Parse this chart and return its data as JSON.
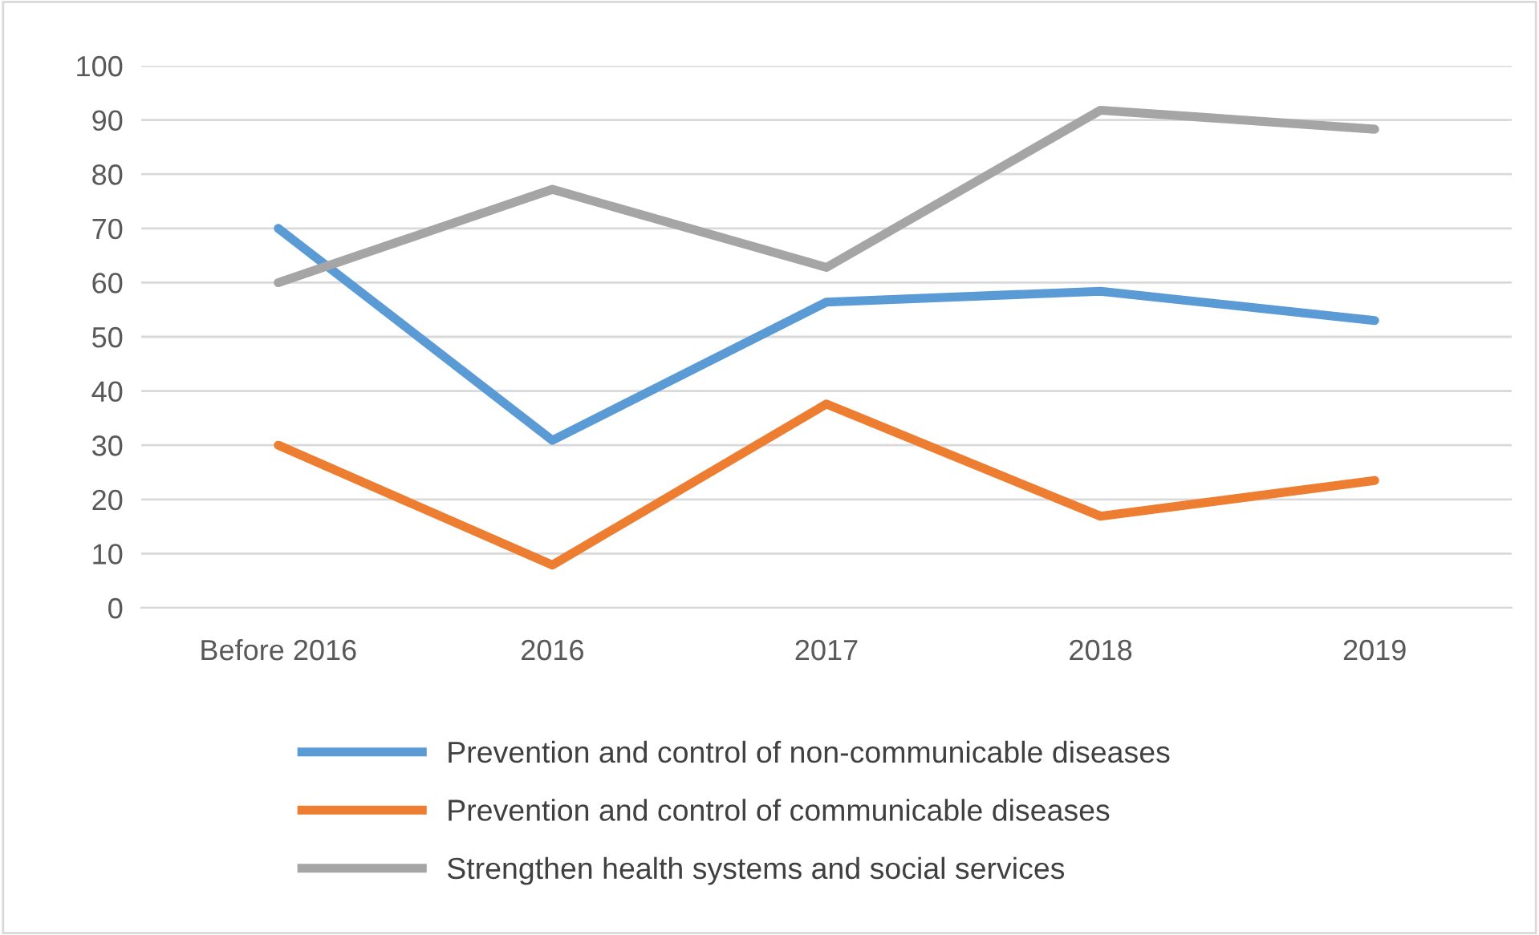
{
  "chart_data": {
    "type": "line",
    "categories": [
      "Before 2016",
      "2016",
      "2017",
      "2018",
      "2019"
    ],
    "series": [
      {
        "name": "Prevention and control of non-communicable diseases",
        "color": "#5b9bd5",
        "values": [
          70,
          30.9,
          56.4,
          58.4,
          53.0
        ]
      },
      {
        "name": "Prevention and control of communicable diseases",
        "color": "#ed7d31",
        "values": [
          30,
          7.9,
          37.6,
          16.9,
          23.5
        ]
      },
      {
        "name": "Strengthen health systems and social services",
        "color": "#a5a5a5",
        "values": [
          60,
          77.2,
          62.8,
          91.8,
          88.3
        ]
      }
    ],
    "ylim": [
      0,
      100
    ],
    "yticks": [
      0,
      10,
      20,
      30,
      40,
      50,
      60,
      70,
      80,
      90,
      100
    ],
    "grid": "y",
    "legend": "bottom",
    "marker": "none",
    "line_style": "solid"
  }
}
